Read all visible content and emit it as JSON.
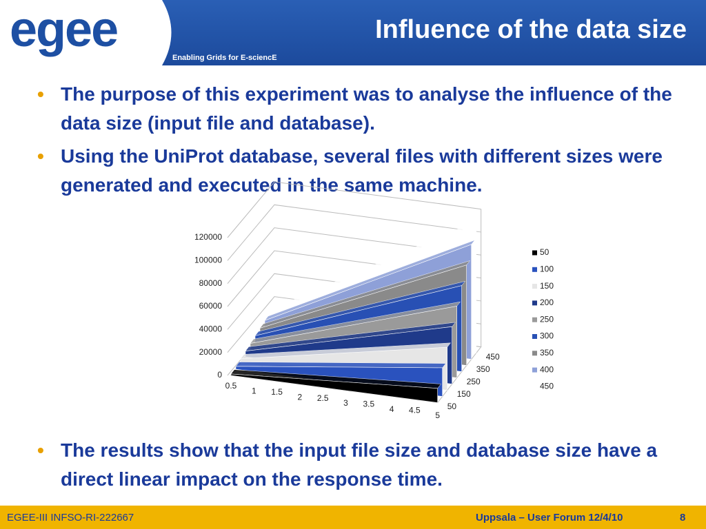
{
  "header": {
    "logo": "egee",
    "tagline": "Enabling Grids for E-sciencE",
    "title": "Influence of the data size"
  },
  "bullets": [
    "The purpose of this experiment was to analyse the influence of the data size (input file and database).",
    "Using the UniProt database, several files with different sizes were generated and executed in the same machine.",
    "The results show that the input file size and database size have a direct linear impact on the response time."
  ],
  "chart_data": {
    "type": "area3d",
    "categories": [
      "0.5",
      "1",
      "1.5",
      "2",
      "2.5",
      "3",
      "3.5",
      "4",
      "4.5",
      "5"
    ],
    "ylim": [
      0,
      120000
    ],
    "yticks": [
      0,
      20000,
      40000,
      60000,
      80000,
      100000,
      120000
    ],
    "grid": true,
    "series": [
      {
        "name": "50",
        "color": "#000000",
        "values": [
          1250,
          2500,
          3750,
          5000,
          6250,
          7500,
          8750,
          10000,
          11250,
          12500
        ]
      },
      {
        "name": "100",
        "color": "#2a52be",
        "values": [
          2500,
          5000,
          7500,
          10000,
          12500,
          15000,
          17500,
          20000,
          22500,
          25000
        ]
      },
      {
        "name": "150",
        "color": "#e6e6e6",
        "values": [
          3750,
          7500,
          11250,
          15000,
          18750,
          22500,
          26250,
          30000,
          33750,
          37500
        ]
      },
      {
        "name": "200",
        "color": "#1f3a8a",
        "values": [
          5000,
          10000,
          15000,
          20000,
          25000,
          30000,
          35000,
          40000,
          45000,
          50000
        ]
      },
      {
        "name": "250",
        "color": "#9a9a9a",
        "values": [
          6250,
          12500,
          18750,
          25000,
          31250,
          37500,
          43750,
          50000,
          56250,
          62500
        ]
      },
      {
        "name": "300",
        "color": "#2850b4",
        "values": [
          7500,
          15000,
          22500,
          30000,
          37500,
          45000,
          52500,
          60000,
          67500,
          75000
        ]
      },
      {
        "name": "350",
        "color": "#8a8a8a",
        "values": [
          8750,
          17500,
          26250,
          35000,
          43750,
          52500,
          61250,
          70000,
          78750,
          87500
        ]
      },
      {
        "name": "400",
        "color": "#8ea0d8",
        "values": [
          10000,
          20000,
          30000,
          40000,
          50000,
          60000,
          70000,
          80000,
          90000,
          100000
        ]
      },
      {
        "name": "450",
        "color": "#ffffff",
        "values": [
          11250,
          22500,
          33750,
          45000,
          56250,
          67500,
          78750,
          90000,
          101250,
          112500
        ]
      }
    ]
  },
  "footer": {
    "left": "EGEE-III INFSO-RI-222667",
    "center": "Uppsala – User Forum 12/4/10",
    "page": "8"
  }
}
